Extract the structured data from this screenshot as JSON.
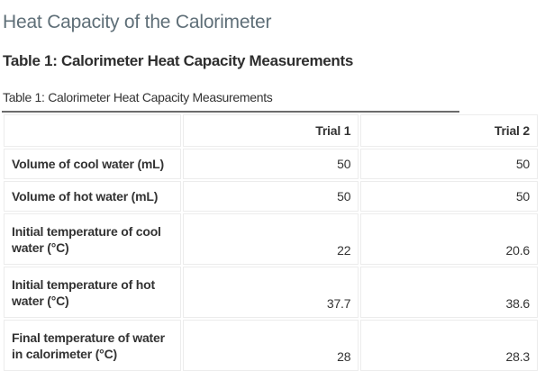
{
  "section_title": "Heat Capacity of the Calorimeter",
  "table_heading": "Table 1: Calorimeter Heat Capacity Measurements",
  "table": {
    "caption": "Table 1: Calorimeter Heat Capacity Measurements",
    "columns": [
      "",
      "Trial 1",
      "Trial 2"
    ],
    "rows": [
      {
        "label": "Volume of cool water (mL)",
        "values": [
          "50",
          "50"
        ]
      },
      {
        "label": "Volume of hot water (mL)",
        "values": [
          "50",
          "50"
        ]
      },
      {
        "label": "Initial temperature of cool water (°C)",
        "values": [
          "22",
          "20.6"
        ]
      },
      {
        "label": "Initial temperature of hot water (°C)",
        "values": [
          "37.7",
          "38.6"
        ]
      },
      {
        "label": "Final temperature of water in calorimeter (°C)",
        "values": [
          "28",
          "28.3"
        ]
      }
    ]
  }
}
